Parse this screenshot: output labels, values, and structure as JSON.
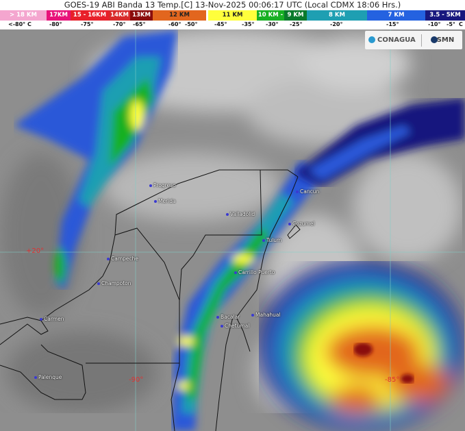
{
  "title": "GOES-19 ABI Banda 13 Temp.[C] 13-Nov-2025 00:06:17 UTC (Local CDMX  18:06 Hrs.)",
  "legend": [
    {
      "label": "> 18 KM",
      "color": "#f4a6cf"
    },
    {
      "label": "17KM",
      "color": "#e8127a"
    },
    {
      "label": "15 - 16KM",
      "color": "#e8202a"
    },
    {
      "label": "14KM",
      "color": "#d82a2a"
    },
    {
      "label": "13KM",
      "color": "#8a0c0c"
    },
    {
      "label": "12 KM",
      "color": "#e2661e"
    },
    {
      "label": "11 KM",
      "color": "#ffff3c"
    },
    {
      "label": "10 KM -",
      "color": "#18b024"
    },
    {
      "label": "9 KM",
      "color": "#0a7a2c"
    },
    {
      "label": "8 KM",
      "color": "#1e9fb2"
    },
    {
      "label": "7 KM",
      "color": "#2462e0"
    },
    {
      "label": "3.5 - 5KM",
      "color": "#18187e"
    }
  ],
  "temps": [
    "<-80° C",
    "-80°",
    "-75°",
    "-70°",
    "-65°",
    "-60°",
    "-50°",
    "-45°",
    "-35°",
    "-30°",
    "-25°",
    "-20°",
    "-15°",
    "-10°",
    "-5°",
    "C"
  ],
  "logos": {
    "conagua": "CONAGUA",
    "smn": "SMN"
  },
  "cities": [
    "Progreso",
    "Merida",
    "Valladolid",
    "Cancun",
    "Cozumel",
    "Tulum",
    "Campeche",
    "Champoton",
    "Carrillo Puerto",
    "Carmen",
    "Bacalar",
    "Chetumal",
    "Mahahual",
    "Palenque"
  ],
  "coords": {
    "lat20": "+20°",
    "lon90": "-90°",
    "lon85": "-85°"
  }
}
